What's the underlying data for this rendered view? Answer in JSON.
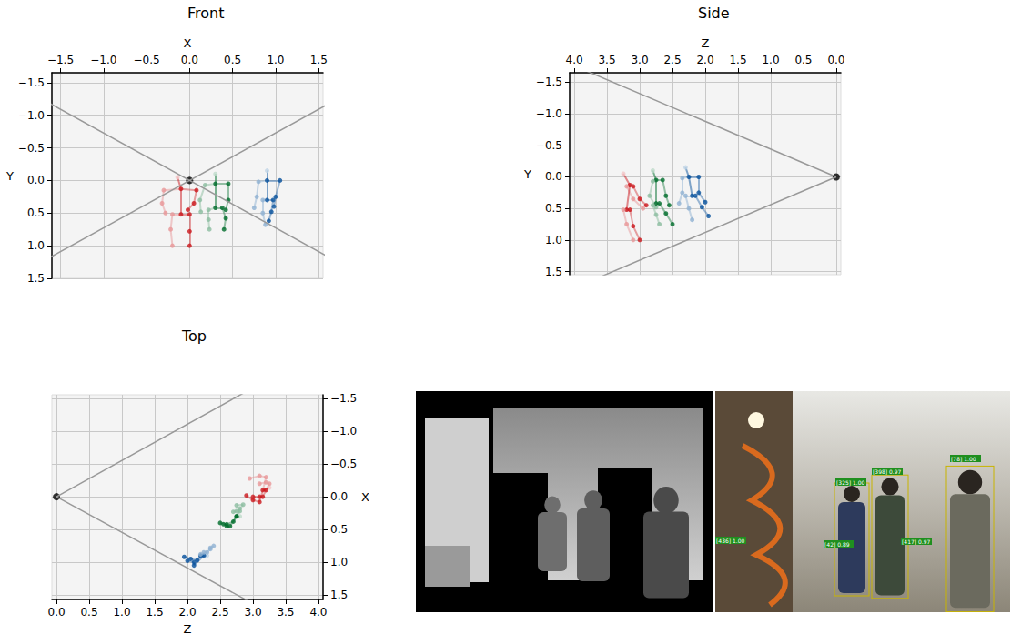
{
  "chart_data": [
    {
      "type": "scatter",
      "title": "Front",
      "xlabel": "X",
      "ylabel": "Y",
      "grid": true,
      "xlim": [
        -1.6,
        1.55
      ],
      "ylim": [
        1.5,
        -1.65
      ],
      "xticks": [
        {
          "value": -1.5,
          "label": "−1.5"
        },
        {
          "value": -1.0,
          "label": "−1.0"
        },
        {
          "value": -0.5,
          "label": "−0.5"
        },
        {
          "value": 0,
          "label": "0.0"
        },
        0.5,
        {
          "value": 1.0,
          "label": "1.0"
        },
        1.5
      ],
      "yticks": [
        {
          "value": -1.5,
          "label": "−1.5"
        },
        {
          "value": -1.0,
          "label": "−1.0"
        },
        {
          "value": -0.5,
          "label": "−0.5"
        },
        {
          "value": 0,
          "label": "0.0"
        },
        0.5,
        {
          "value": 1.0,
          "label": "1.0"
        },
        1.5
      ],
      "camera": [
        0,
        0
      ],
      "frustum": [
        [
          [
            -2.2,
            -1.6
          ],
          [
            2.2,
            1.6
          ]
        ],
        [
          [
            -2.2,
            1.6
          ],
          [
            2.2,
            -1.6
          ]
        ]
      ]
    },
    {
      "type": "scatter",
      "title": "Side",
      "xlabel": "Z",
      "ylabel": "Y",
      "grid": true,
      "xlim": [
        4.07,
        -0.07
      ],
      "ylim": [
        1.55,
        -1.65
      ],
      "xticks": [
        {
          "value": 4.0,
          "label": "4.0"
        },
        3.5,
        {
          "value": 3.0,
          "label": "3.0"
        },
        2.5,
        {
          "value": 2.0,
          "label": "2.0"
        },
        1.5,
        {
          "value": 1.0,
          "label": "1.0"
        },
        0.5,
        {
          "value": 0,
          "label": "0.0"
        }
      ],
      "yticks": [
        {
          "value": -1.5,
          "label": "−1.5"
        },
        {
          "value": -1.0,
          "label": "−1.0"
        },
        {
          "value": -0.5,
          "label": "−0.5"
        },
        {
          "value": 0,
          "label": "0.0"
        },
        0.5,
        {
          "value": 1.0,
          "label": "1.0"
        },
        1.5
      ],
      "camera": [
        0,
        0
      ],
      "frustum": [
        [
          [
            0,
            0
          ],
          [
            4.75,
            -2.09
          ]
        ],
        [
          [
            0,
            0
          ],
          [
            4.75,
            2.09
          ]
        ]
      ]
    },
    {
      "type": "scatter",
      "title": "Top",
      "xlabel": "Z",
      "ylabel": "X",
      "grid": true,
      "xlim": [
        -0.07,
        4.07
      ],
      "ylim": [
        1.57,
        -1.56
      ],
      "xticks": [
        {
          "value": 0,
          "label": "0.0"
        },
        0.5,
        {
          "value": 1.0,
          "label": "1.0"
        },
        1.5,
        {
          "value": 2.0,
          "label": "2.0"
        },
        2.5,
        {
          "value": 3.0,
          "label": "3.0"
        },
        3.5,
        {
          "value": 4.0,
          "label": "4.0"
        }
      ],
      "yticks": [
        {
          "value": -1.5,
          "label": "−1.5"
        },
        {
          "value": -1.0,
          "label": "−1.0"
        },
        {
          "value": -0.5,
          "label": "−0.5"
        },
        {
          "value": 0,
          "label": "0.0"
        },
        0.5,
        {
          "value": 1.0,
          "label": "1.0"
        },
        1.5
      ],
      "camera": [
        0,
        0
      ],
      "frustum": [
        [
          [
            0,
            0
          ],
          [
            4.5,
            -2.5
          ]
        ],
        [
          [
            0,
            0
          ],
          [
            4.5,
            2.45
          ]
        ]
      ]
    }
  ],
  "skeletons": [
    {
      "color": "#cb181d",
      "joints": [
        [
          -0.14,
          -0.05,
          3.25
        ],
        [
          -0.1,
          0.13,
          3.15
        ],
        [
          -0.3,
          0.15,
          3.2
        ],
        [
          -0.32,
          0.35,
          3.1
        ],
        [
          -0.28,
          0.5,
          2.95
        ],
        [
          0.08,
          0.15,
          3.1
        ],
        [
          0.05,
          0.35,
          3.0
        ],
        [
          -0.02,
          0.45,
          2.9
        ],
        [
          -0.1,
          0.52,
          3.2
        ],
        [
          -0.2,
          0.52,
          3.25
        ],
        [
          -0.22,
          0.75,
          3.2
        ],
        [
          -0.2,
          1.0,
          3.1
        ],
        [
          0.0,
          0.52,
          3.15
        ],
        [
          0.0,
          0.78,
          3.1
        ],
        [
          0.0,
          1.0,
          3.0
        ]
      ]
    },
    {
      "color": "#006d2c",
      "joints": [
        [
          0.3,
          -0.1,
          2.8
        ],
        [
          0.3,
          0.05,
          2.75
        ],
        [
          0.18,
          0.07,
          2.8
        ],
        [
          0.12,
          0.3,
          2.85
        ],
        [
          0.13,
          0.48,
          2.75
        ],
        [
          0.45,
          0.05,
          2.65
        ],
        [
          0.45,
          0.3,
          2.6
        ],
        [
          0.42,
          0.45,
          2.55
        ],
        [
          0.3,
          0.42,
          2.75
        ],
        [
          0.22,
          0.45,
          2.8
        ],
        [
          0.22,
          0.6,
          2.75
        ],
        [
          0.23,
          0.75,
          2.7
        ],
        [
          0.38,
          0.42,
          2.7
        ],
        [
          0.42,
          0.58,
          2.6
        ],
        [
          0.4,
          0.75,
          2.5
        ]
      ]
    },
    {
      "color": "#08519c",
      "joints": [
        [
          0.9,
          -0.15,
          2.3
        ],
        [
          0.9,
          0.0,
          2.25
        ],
        [
          0.8,
          0.02,
          2.35
        ],
        [
          0.78,
          0.25,
          2.35
        ],
        [
          0.75,
          0.42,
          2.4
        ],
        [
          1.05,
          0.0,
          2.1
        ],
        [
          1.0,
          0.25,
          2.1
        ],
        [
          0.98,
          0.4,
          2.0
        ],
        [
          0.9,
          0.3,
          2.2
        ],
        [
          0.85,
          0.3,
          2.3
        ],
        [
          0.85,
          0.5,
          2.25
        ],
        [
          0.88,
          0.68,
          2.2
        ],
        [
          0.97,
          0.3,
          2.15
        ],
        [
          0.95,
          0.48,
          2.05
        ],
        [
          0.92,
          0.62,
          1.95
        ]
      ]
    }
  ],
  "detections": [
    "[436] 1.00",
    "[325] 1.00",
    "[398] 0.97",
    "[78] 1.00",
    "[42] 0.89",
    "[417] 0.97"
  ]
}
